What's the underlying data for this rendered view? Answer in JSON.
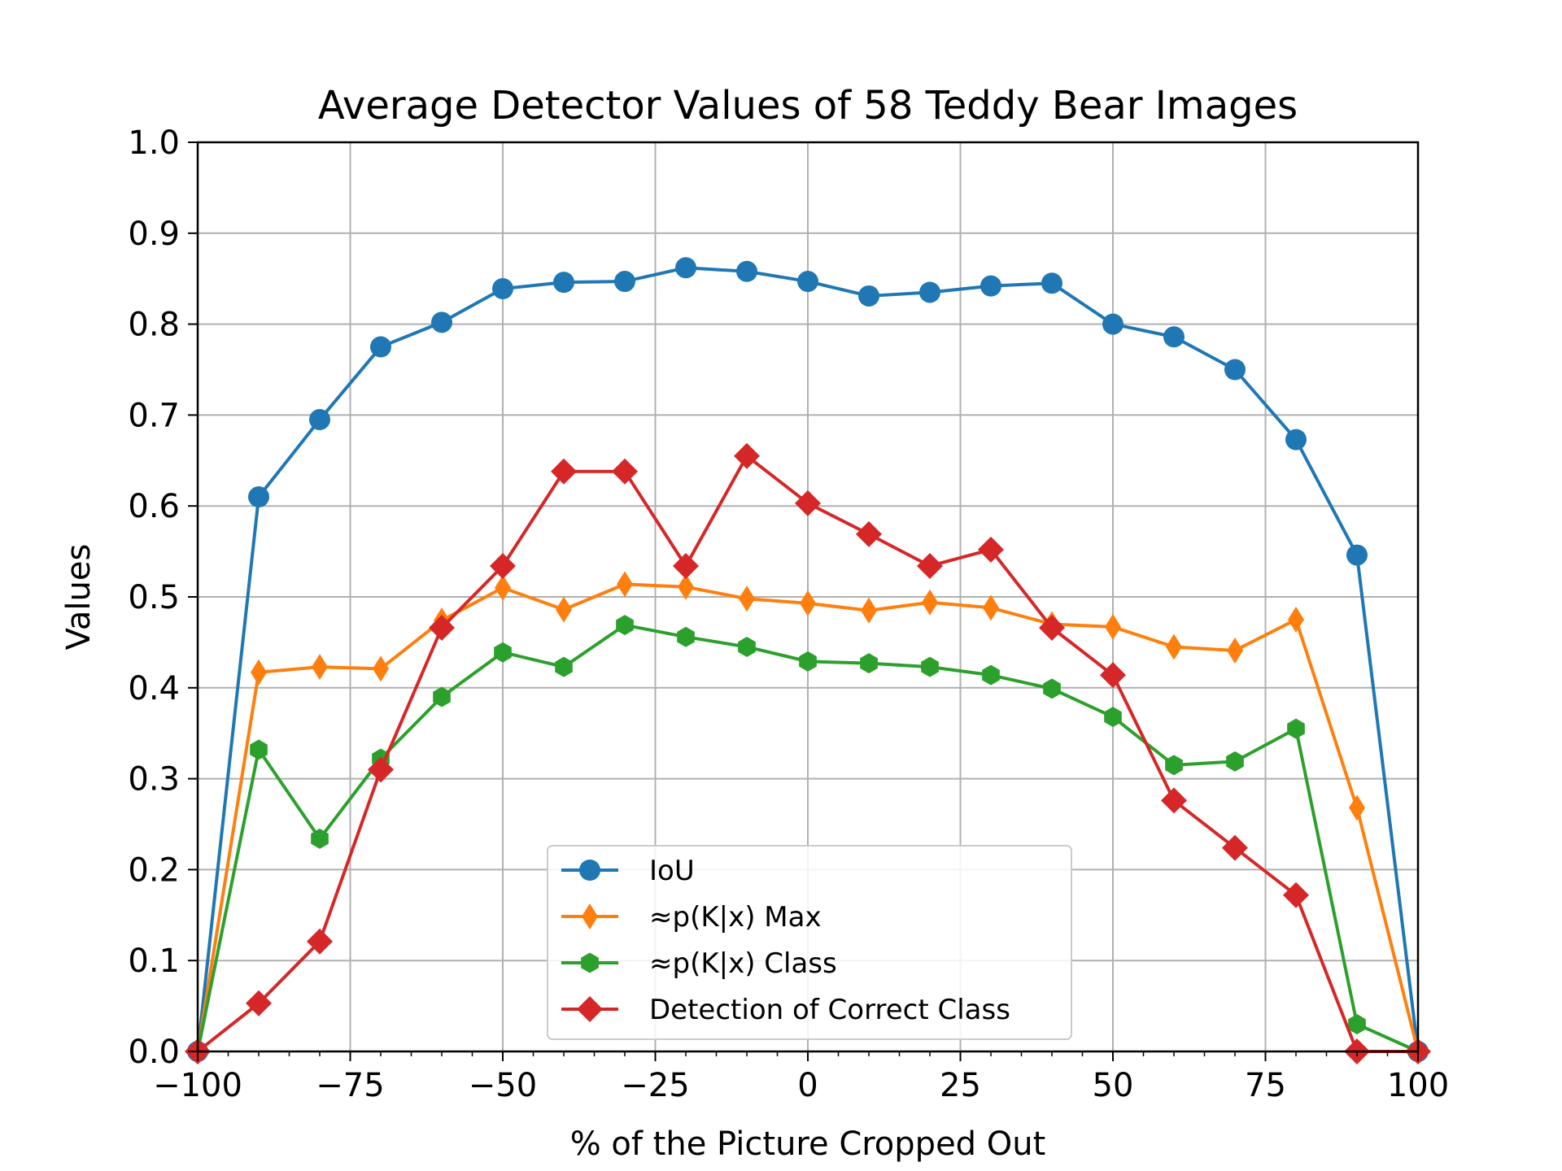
{
  "chart_data": {
    "type": "line",
    "title": "Average Detector Values of 58 Teddy Bear Images",
    "xlabel": "% of the Picture Cropped Out",
    "ylabel": "Values",
    "xlim": [
      -100,
      100
    ],
    "ylim": [
      0.0,
      1.0
    ],
    "grid": true,
    "legend_position": "bottom-center",
    "x": [
      -100,
      -90,
      -80,
      -70,
      -60,
      -50,
      -40,
      -30,
      -20,
      -10,
      0,
      10,
      20,
      30,
      40,
      50,
      60,
      70,
      80,
      90,
      100
    ],
    "x_ticks": [
      -100,
      -75,
      -50,
      -25,
      0,
      25,
      50,
      75,
      100
    ],
    "x_tick_labels": [
      "−100",
      "−75",
      "−50",
      "−25",
      "0",
      "25",
      "50",
      "75",
      "100"
    ],
    "y_ticks": [
      0.0,
      0.1,
      0.2,
      0.3,
      0.4,
      0.5,
      0.6,
      0.7,
      0.8,
      0.9,
      1.0
    ],
    "y_tick_labels": [
      "0.0",
      "0.1",
      "0.2",
      "0.3",
      "0.4",
      "0.5",
      "0.6",
      "0.7",
      "0.8",
      "0.9",
      "1.0"
    ],
    "series": [
      {
        "name": "IoU",
        "color": "#1f77b4",
        "marker": "circle",
        "values": [
          0.0,
          0.61,
          0.695,
          0.775,
          0.802,
          0.839,
          0.846,
          0.847,
          0.862,
          0.858,
          0.847,
          0.831,
          0.835,
          0.842,
          0.845,
          0.8,
          0.786,
          0.75,
          0.673,
          0.546,
          0.0
        ]
      },
      {
        "name": "≈p(K|x) Max",
        "color": "#ff7f0e",
        "marker": "thin-diamond",
        "values": [
          0.0,
          0.417,
          0.423,
          0.421,
          0.474,
          0.51,
          0.486,
          0.514,
          0.511,
          0.498,
          0.493,
          0.485,
          0.494,
          0.488,
          0.47,
          0.467,
          0.445,
          0.441,
          0.475,
          0.268,
          0.0
        ]
      },
      {
        "name": "≈p(K|x) Class",
        "color": "#2ca02c",
        "marker": "hexagon",
        "values": [
          0.0,
          0.332,
          0.234,
          0.322,
          0.39,
          0.439,
          0.423,
          0.469,
          0.456,
          0.445,
          0.429,
          0.427,
          0.423,
          0.414,
          0.399,
          0.368,
          0.315,
          0.319,
          0.355,
          0.03,
          0.0
        ]
      },
      {
        "name": "Detection of Correct Class",
        "color": "#d62728",
        "marker": "diamond",
        "values": [
          0.0,
          0.053,
          0.121,
          0.31,
          0.466,
          0.534,
          0.638,
          0.638,
          0.534,
          0.655,
          0.603,
          0.569,
          0.534,
          0.552,
          0.466,
          0.414,
          0.276,
          0.224,
          0.172,
          0.0,
          0.0
        ]
      }
    ]
  }
}
